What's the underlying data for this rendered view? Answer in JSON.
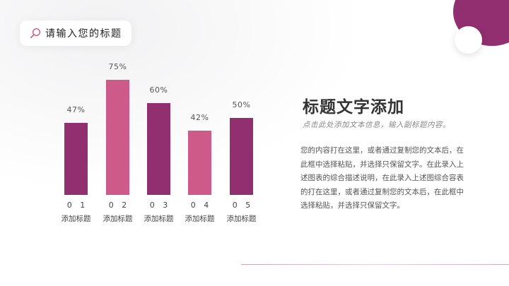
{
  "header": {
    "search_placeholder": "请输入您的标题",
    "search_icon": "search-icon"
  },
  "colors": {
    "dark": "#912f70",
    "light": "#cd5a88",
    "text": "#333333"
  },
  "chart_data": {
    "type": "bar",
    "title": "",
    "categories": [
      "01",
      "02",
      "03",
      "04",
      "05"
    ],
    "category_labels": [
      "添加标题",
      "添加标题",
      "添加标题",
      "添加标题",
      "添加标题"
    ],
    "values": [
      47,
      75,
      60,
      42,
      50
    ],
    "value_labels": [
      "47%",
      "75%",
      "60%",
      "42%",
      "50%"
    ],
    "colors": [
      "#912f70",
      "#cd5a88",
      "#912f70",
      "#cd5a88",
      "#912f70"
    ],
    "xlabel": "",
    "ylabel": "",
    "ylim": [
      0,
      100
    ],
    "grid": false,
    "legend": "none"
  },
  "content": {
    "title": "标题文字添加",
    "subtitle": "点击此处添加文本信息，输入副标题内容。",
    "body": "您的内容打在这里，或者通过复制您的文本后，在此框中选择粘贴，并选择只保留文字。在此录入上述图表的综合描述说明，在此录入上述图综合容表的打在这里，或者通过复制您的文本后，在此框中选择粘贴，并选择只保留文字。"
  }
}
